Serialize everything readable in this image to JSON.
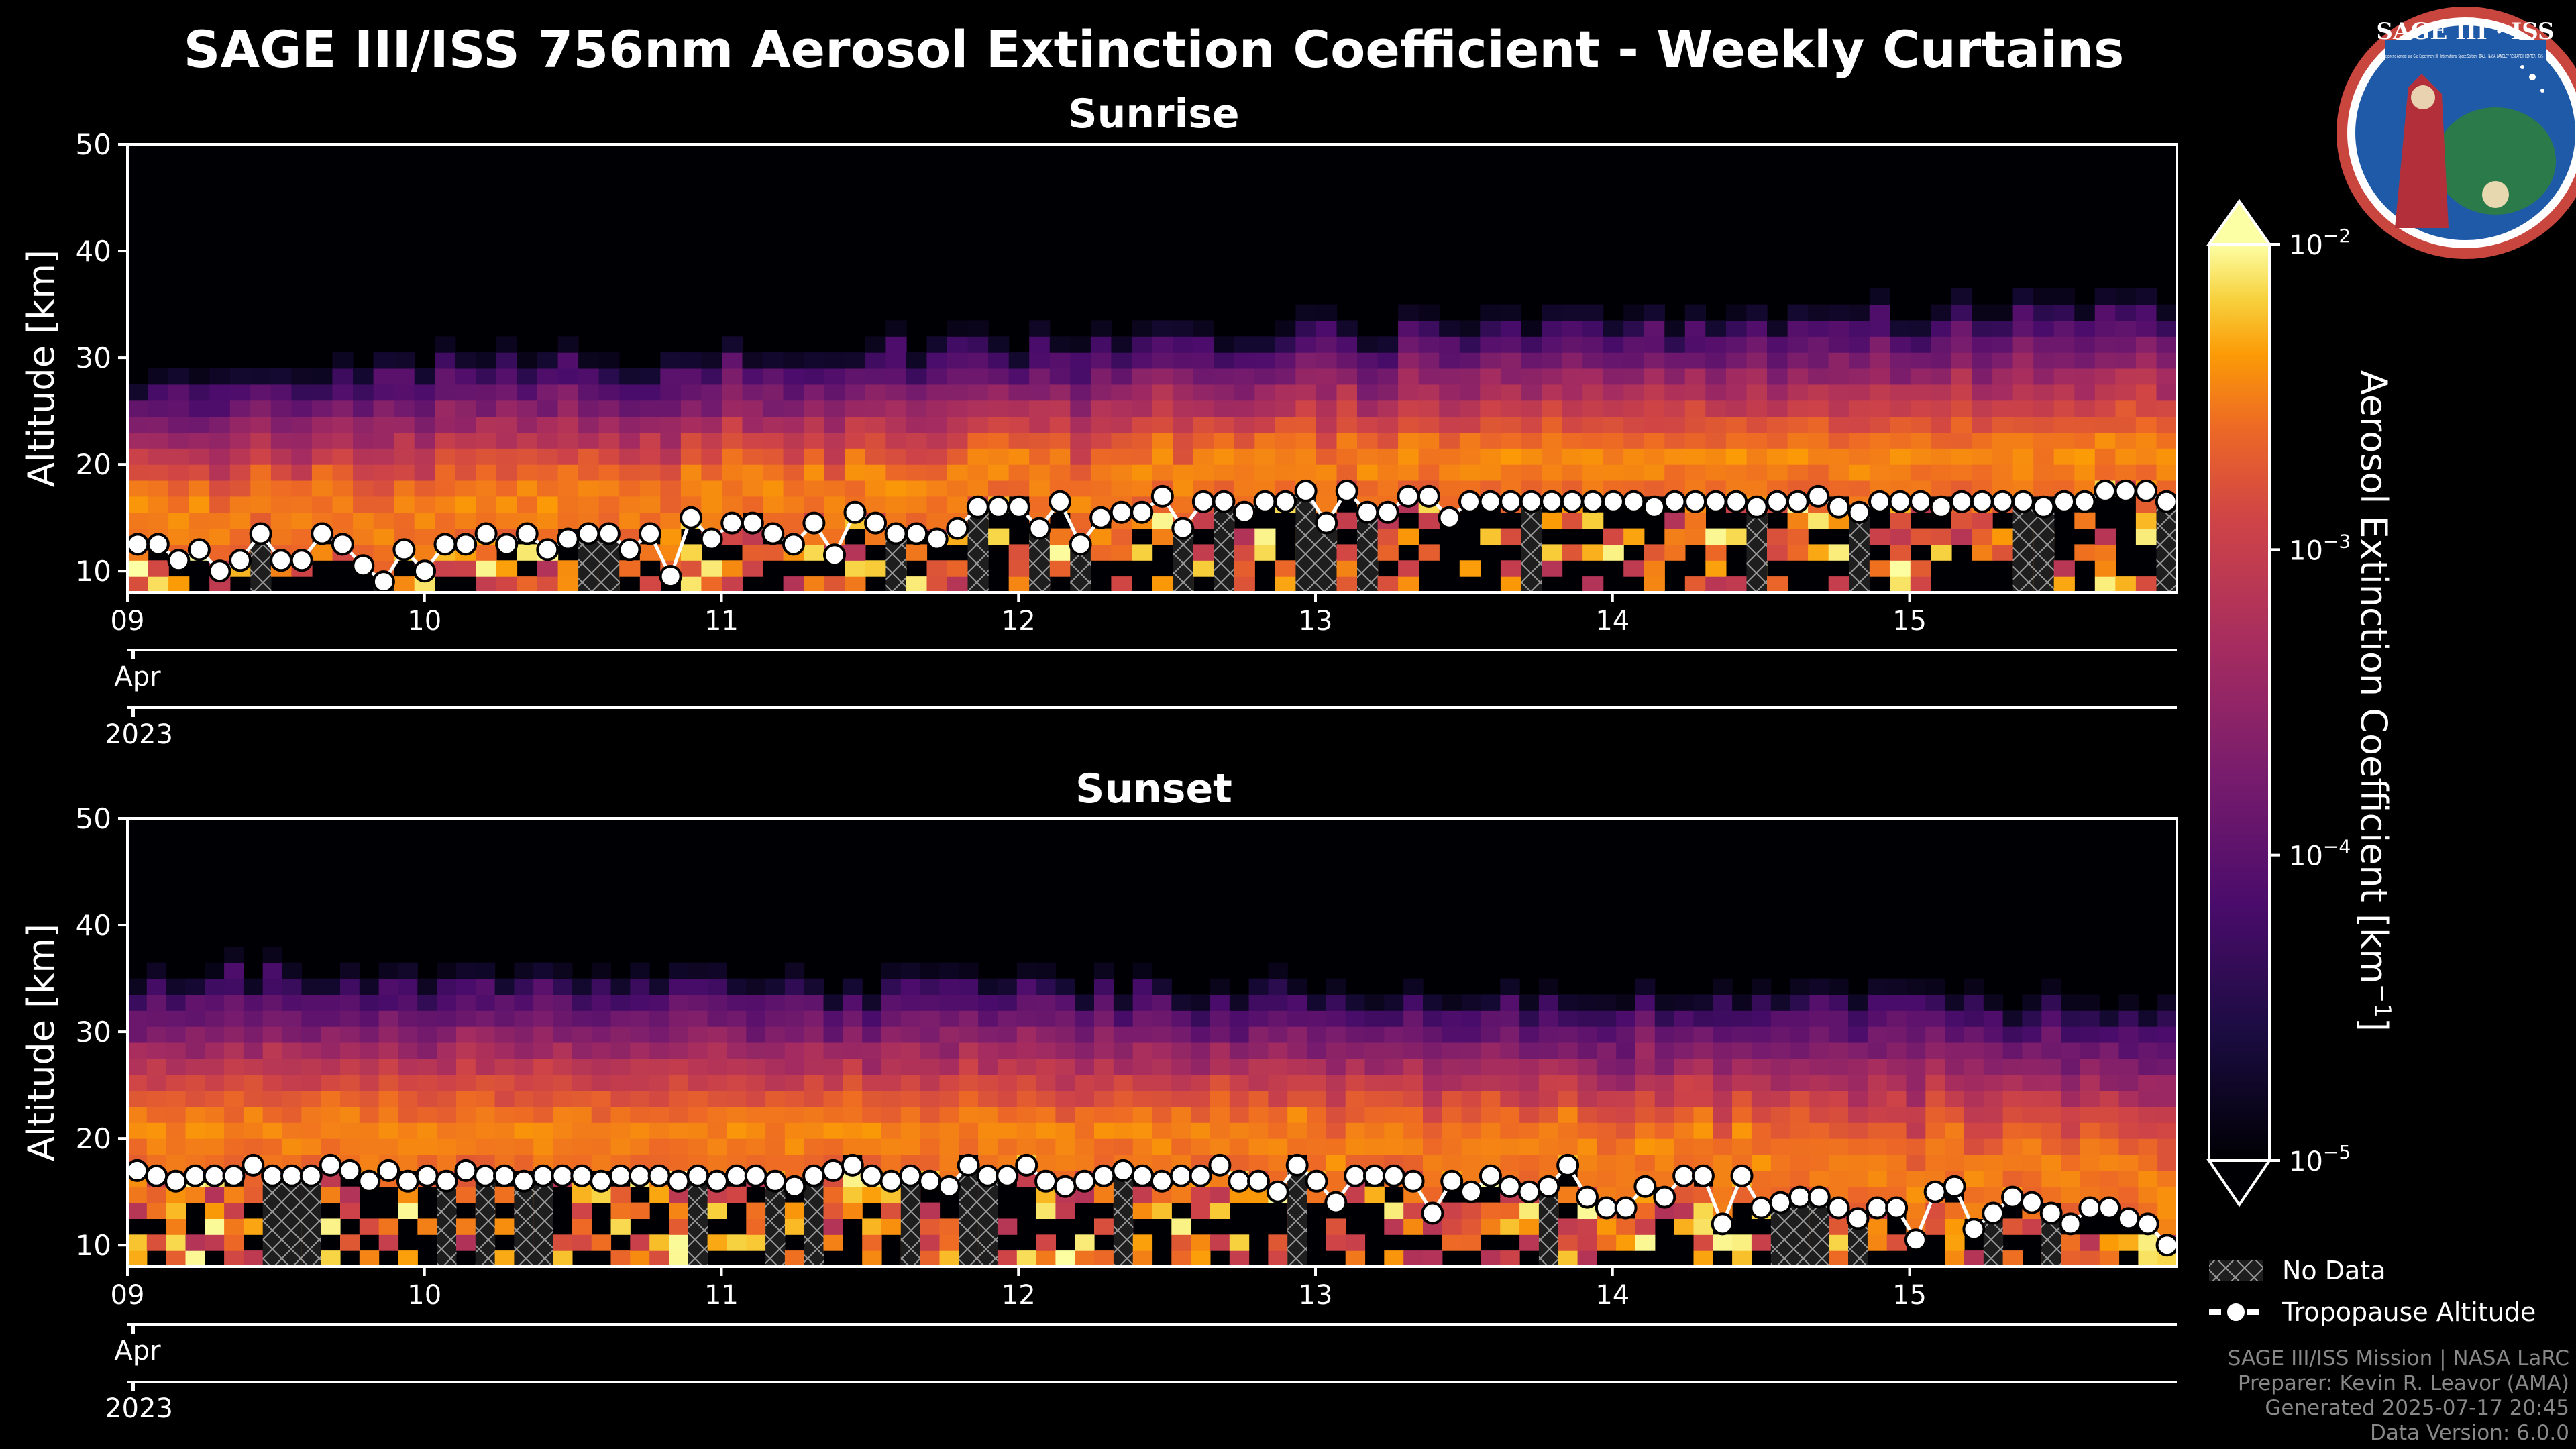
{
  "title": "SAGE III/ISS 756nm Aerosol Extinction Coefficient - Weekly Curtains",
  "logo": {
    "name": "SAGE III · ISS",
    "text": "Stratospheric Aerosol and Gas Experiment III · International Space Station · BALL · NASA LANGLEY RESEARCH CENTER · TAS-I · ESA"
  },
  "chart_data": [
    {
      "type": "heatmap",
      "title": "Sunrise",
      "ylabel": "Altitude [km]",
      "ylim": [
        8,
        50
      ],
      "yticks": [
        10,
        20,
        30,
        40,
        50
      ],
      "xlim_days": [
        9,
        15.9
      ],
      "xticks": [
        9,
        10,
        11,
        12,
        13,
        14,
        15
      ],
      "xtick_labels": [
        "09",
        "10",
        "11",
        "12",
        "13",
        "14",
        "15"
      ],
      "month_label": "Apr",
      "year_label": "2023",
      "aerosol_top_km_start": 27,
      "aerosol_top_km_end": 34,
      "tropopause_km": [
        12.5,
        12.5,
        11,
        12,
        10,
        11,
        13.5,
        11,
        11,
        13.5,
        12.5,
        10.5,
        9,
        12,
        10,
        12.5,
        12.5,
        13.5,
        12.5,
        13.5,
        12,
        13,
        13.5,
        13.5,
        12,
        13.5,
        9.5,
        15,
        13,
        14.5,
        14.5,
        13.5,
        12.5,
        14.5,
        11.5,
        15.5,
        14.5,
        13.5,
        13.5,
        13,
        14,
        16,
        16,
        16,
        14,
        16.5,
        12.5,
        15,
        15.5,
        15.5,
        17,
        14,
        16.5,
        16.5,
        15.5,
        16.5,
        16.5,
        17.5,
        14.5,
        17.5,
        15.5,
        15.5,
        17,
        17,
        15,
        16.5,
        16.5,
        16.5,
        16.5,
        16.5,
        16.5,
        16.5,
        16.5,
        16.5,
        16,
        16.5,
        16.5,
        16.5,
        16.5,
        16,
        16.5,
        16.5,
        17,
        16,
        15.5,
        16.5,
        16.5,
        16.5,
        16,
        16.5,
        16.5,
        16.5,
        16.5,
        16,
        16.5,
        16.5,
        17.5,
        17.5,
        17.5,
        16.5
      ]
    },
    {
      "type": "heatmap",
      "title": "Sunset",
      "ylabel": "Altitude [km]",
      "ylim": [
        8,
        50
      ],
      "yticks": [
        10,
        20,
        30,
        40,
        50
      ],
      "xlim_days": [
        9,
        15.9
      ],
      "xticks": [
        9,
        10,
        11,
        12,
        13,
        14,
        15
      ],
      "xtick_labels": [
        "09",
        "10",
        "11",
        "12",
        "13",
        "14",
        "15"
      ],
      "month_label": "Apr",
      "year_label": "2023",
      "aerosol_top_km_start": 34,
      "aerosol_top_km_end": 31,
      "tropopause_km": [
        17,
        16.5,
        16,
        16.5,
        16.5,
        16.5,
        17.5,
        16.5,
        16.5,
        16.5,
        17.5,
        17,
        16,
        17,
        16,
        16.5,
        16,
        17,
        16.5,
        16.5,
        16,
        16.5,
        16.5,
        16.5,
        16,
        16.5,
        16.5,
        16.5,
        16,
        16.5,
        16,
        16.5,
        16.5,
        16,
        15.5,
        16.5,
        17,
        17.5,
        16.5,
        16,
        16.5,
        16,
        15.5,
        17.5,
        16.5,
        16.5,
        17.5,
        16,
        15.5,
        16,
        16.5,
        17,
        16.5,
        16,
        16.5,
        16.5,
        17.5,
        16,
        16,
        15,
        17.5,
        16,
        14,
        16.5,
        16.5,
        16.5,
        16,
        13,
        16,
        15,
        16.5,
        15.5,
        15,
        15.5,
        17.5,
        14.5,
        13.5,
        13.5,
        15.5,
        14.5,
        16.5,
        16.5,
        12,
        16.5,
        13.5,
        14,
        14.5,
        14.5,
        13.5,
        12.5,
        13.5,
        13.5,
        10.5,
        15,
        15.5,
        11.5,
        13,
        14.5,
        14,
        13,
        12,
        13.5,
        13.5,
        12.5,
        12,
        10
      ]
    }
  ],
  "colorbar": {
    "label": "Aerosol Extinction Coefficient [km",
    "label_exp": "−1",
    "label_end": "]",
    "ticks": [
      {
        "base": "10",
        "exp": "−2"
      },
      {
        "base": "10",
        "exp": "−3"
      },
      {
        "base": "10",
        "exp": "−4"
      },
      {
        "base": "10",
        "exp": "−5"
      }
    ]
  },
  "legend": {
    "no_data": "No Data",
    "tropopause": "Tropopause Altitude"
  },
  "footer": {
    "line1": "SAGE III/ISS Mission | NASA LaRC",
    "line2": "Preparer: Kevin R. Leavor (AMA)",
    "line3": "Generated 2025-07-17 20:45",
    "line4": "Data Version: 6.0.0"
  },
  "colors": {
    "background": "#000000",
    "tropopause_marker": "#ffffff",
    "axes": "#ffffff"
  }
}
